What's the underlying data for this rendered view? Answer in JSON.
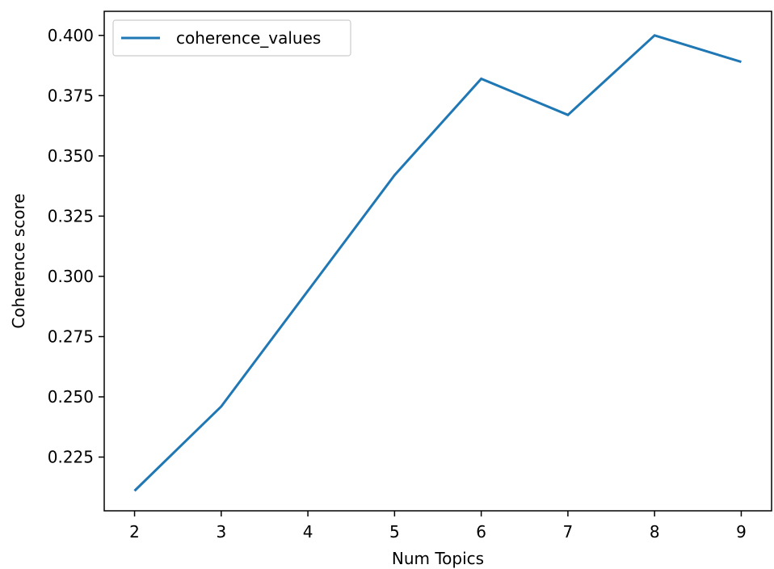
{
  "chart_data": {
    "type": "line",
    "xlabel": "Num Topics",
    "ylabel": "Coherence score",
    "x": [
      2,
      3,
      4,
      5,
      6,
      7,
      8,
      9
    ],
    "series": [
      {
        "name": "coherence_values",
        "values": [
          0.211,
          0.246,
          0.294,
          0.342,
          0.382,
          0.367,
          0.4,
          0.389
        ],
        "color": "#1f77b4"
      }
    ],
    "xlim": [
      1.65,
      9.35
    ],
    "ylim": [
      0.2027,
      0.41
    ],
    "xticks": [
      2,
      3,
      4,
      5,
      6,
      7,
      8,
      9
    ],
    "xtick_labels": [
      "2",
      "3",
      "4",
      "5",
      "6",
      "7",
      "8",
      "9"
    ],
    "yticks": [
      0.225,
      0.25,
      0.275,
      0.3,
      0.325,
      0.35,
      0.375,
      0.4
    ],
    "ytick_labels": [
      "0.225",
      "0.250",
      "0.275",
      "0.300",
      "0.325",
      "0.350",
      "0.375",
      "0.400"
    ],
    "legend_position": "top-left",
    "grid": false
  }
}
